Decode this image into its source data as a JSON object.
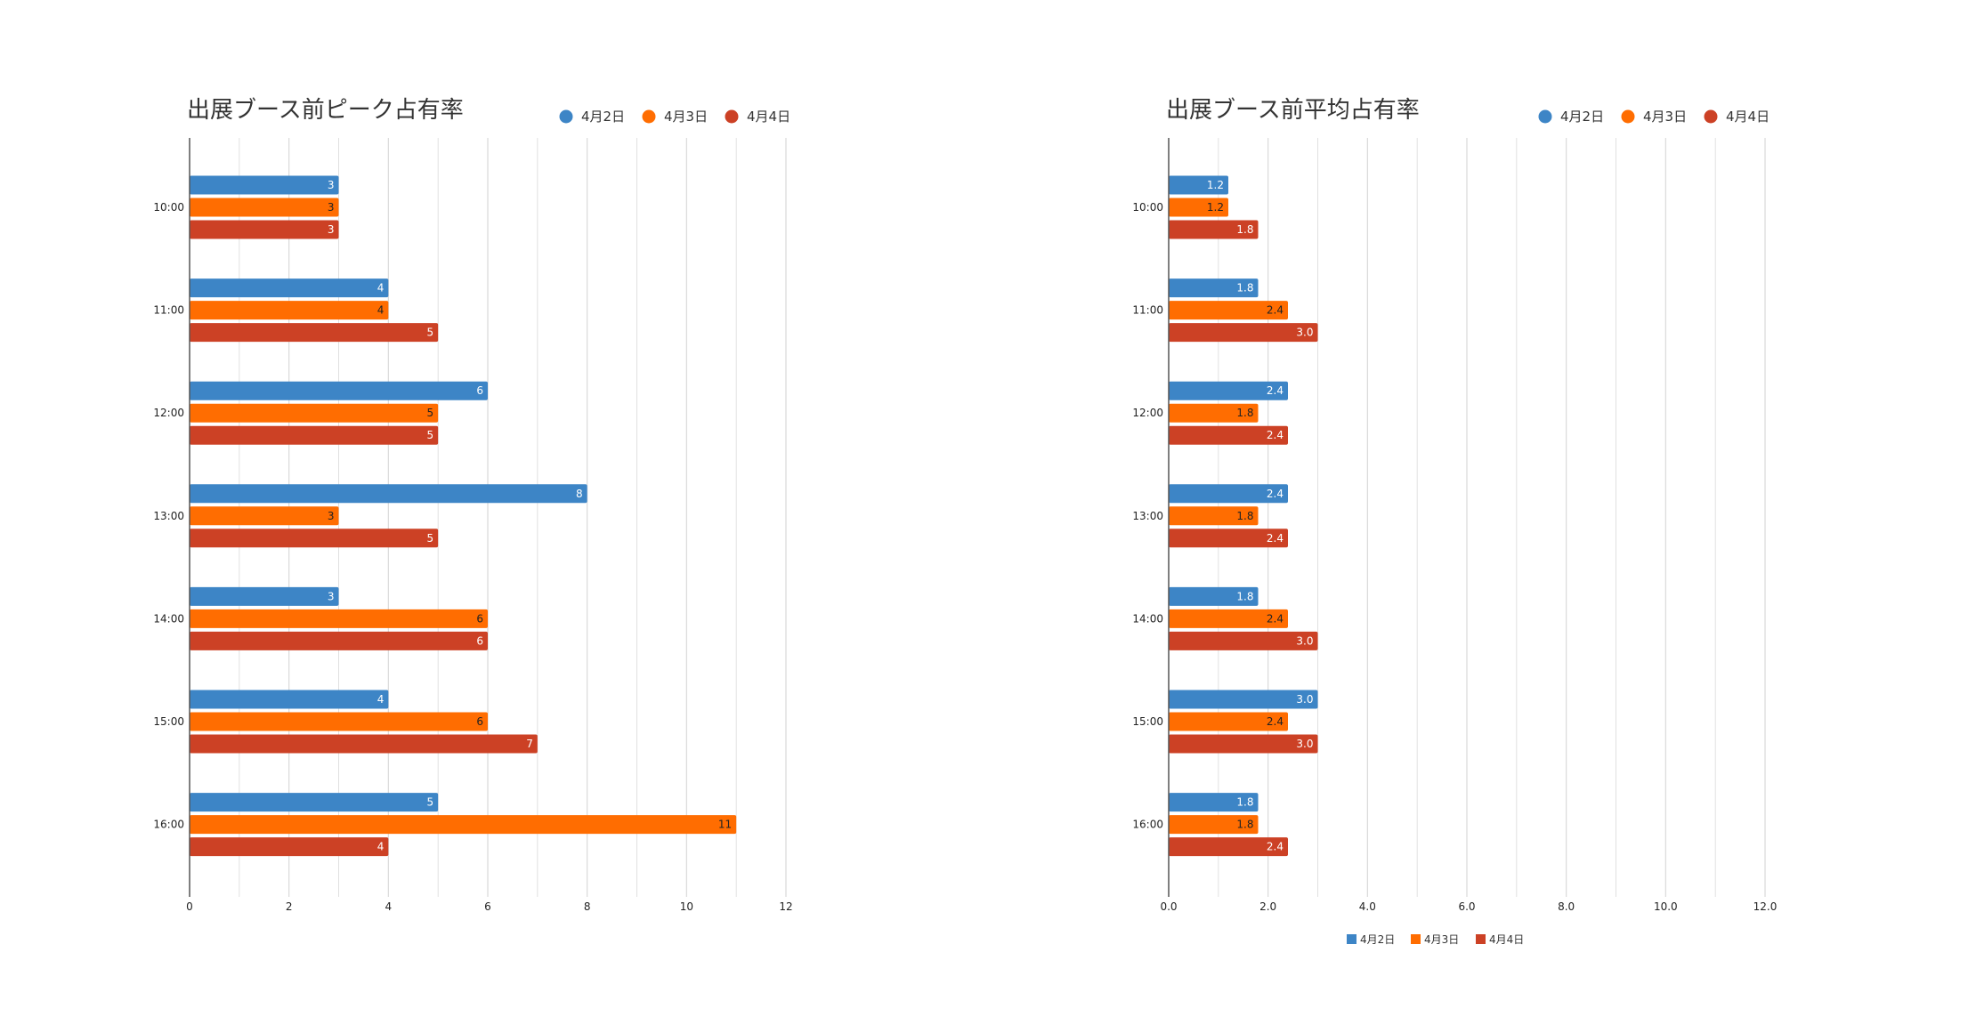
{
  "colors": {
    "series": [
      "#3d85c6",
      "#ff6d01",
      "#cc4125"
    ],
    "grid": "#d9d9d9",
    "axis": "#555555",
    "label_light": "#ffffff",
    "label_dark": "#222222"
  },
  "chart_data": [
    {
      "type": "bar",
      "orientation": "horizontal",
      "title": "出展ブース前ピーク占有率",
      "categories": [
        "10:00",
        "11:00",
        "12:00",
        "13:00",
        "14:00",
        "15:00",
        "16:00"
      ],
      "series": [
        {
          "name": "4月2日",
          "values": [
            3,
            4,
            6,
            8,
            3,
            4,
            5
          ]
        },
        {
          "name": "4月3日",
          "values": [
            3,
            4,
            5,
            3,
            6,
            6,
            11
          ]
        },
        {
          "name": "4月4日",
          "values": [
            3,
            5,
            5,
            5,
            6,
            7,
            4
          ]
        }
      ],
      "data_labels": [
        [
          "3",
          "4",
          "6",
          "8",
          "3",
          "4",
          "5"
        ],
        [
          "3",
          "4",
          "5",
          "3",
          "6",
          "6",
          "11"
        ],
        [
          "3",
          "5",
          "5",
          "5",
          "6",
          "7",
          "4"
        ]
      ],
      "xlim": [
        0,
        12
      ],
      "x_ticks": [
        "0",
        "2",
        "4",
        "6",
        "8",
        "10",
        "12"
      ],
      "grid": true,
      "legend_position": "top-right",
      "bottom_legend": false
    },
    {
      "type": "bar",
      "orientation": "horizontal",
      "title": "出展ブース前平均占有率",
      "categories": [
        "10:00",
        "11:00",
        "12:00",
        "13:00",
        "14:00",
        "15:00",
        "16:00"
      ],
      "series": [
        {
          "name": "4月2日",
          "values": [
            1.2,
            1.8,
            2.4,
            2.4,
            1.8,
            3.0,
            1.8
          ]
        },
        {
          "name": "4月3日",
          "values": [
            1.2,
            2.4,
            1.8,
            1.8,
            2.4,
            2.4,
            1.8
          ]
        },
        {
          "name": "4月4日",
          "values": [
            1.8,
            3.0,
            2.4,
            2.4,
            3.0,
            3.0,
            2.4
          ]
        }
      ],
      "data_labels": [
        [
          "1.2",
          "1.8",
          "2.4",
          "2.4",
          "1.8",
          "3.0",
          "1.8"
        ],
        [
          "1.2",
          "2.4",
          "1.8",
          "1.8",
          "2.4",
          "2.4",
          "1.8"
        ],
        [
          "1.8",
          "3.0",
          "2.4",
          "2.4",
          "3.0",
          "3.0",
          "2.4"
        ]
      ],
      "xlim": [
        0,
        12
      ],
      "x_ticks": [
        "0.0",
        "2.0",
        "4.0",
        "6.0",
        "8.0",
        "10.0",
        "12.0"
      ],
      "grid": true,
      "legend_position": "top-right",
      "bottom_legend": true
    }
  ]
}
